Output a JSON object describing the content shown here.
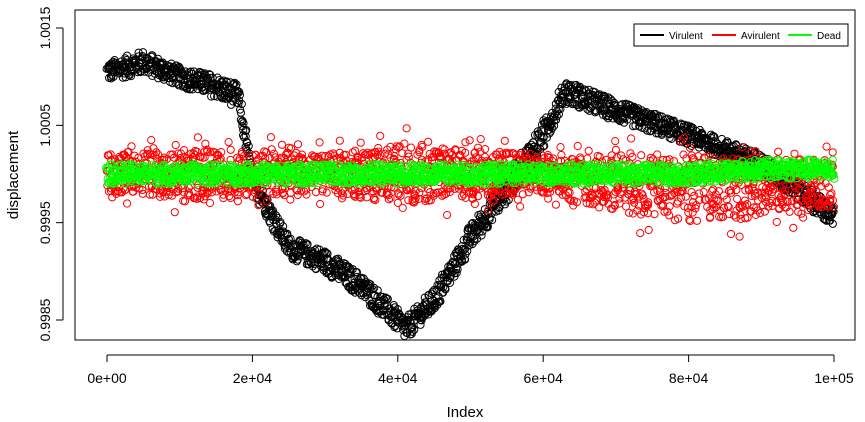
{
  "chart_data": {
    "type": "scatter",
    "xlabel": "Index",
    "ylabel": "displacement",
    "xlim": [
      0,
      100000
    ],
    "ylim": [
      0.99825,
      1.00153
    ],
    "x_ticks": [
      0,
      20000,
      40000,
      60000,
      80000,
      100000
    ],
    "x_tick_labels": [
      "0e+00",
      "2e+04",
      "4e+04",
      "6e+04",
      "8e+04",
      "1e+05"
    ],
    "y_ticks": [
      0.9985,
      0.9995,
      1.0005,
      1.0015
    ],
    "y_tick_labels": [
      "0.9985",
      "0.9995",
      "1.0005",
      "1.0015"
    ],
    "grid": false,
    "legend": {
      "position": "top-right",
      "entries": [
        {
          "label": "Virulent",
          "color": "#000000"
        },
        {
          "label": "Avirulent",
          "color": "#ff0000"
        },
        {
          "label": "Dead",
          "color": "#00ff00"
        }
      ]
    },
    "series": [
      {
        "name": "Virulent",
        "color": "#000000",
        "marker": "open-circle",
        "x": [
          0,
          5000,
          10000,
          15000,
          18000,
          20000,
          25000,
          30000,
          35000,
          40000,
          41000,
          45000,
          50000,
          55000,
          60000,
          63000,
          70000,
          80000,
          90000,
          95000,
          100000
        ],
        "y": [
          1.00105,
          1.00115,
          1.001,
          1.0009,
          1.0008,
          0.99995,
          0.99925,
          0.9991,
          0.99885,
          0.9985,
          0.9984,
          0.9987,
          0.99935,
          0.99985,
          1.0004,
          1.00085,
          1.00065,
          1.0004,
          1.0001,
          0.99985,
          0.99955
        ],
        "spread": [
          0.0001,
          0.00012,
          0.0001,
          0.00012,
          0.00012,
          0.00012,
          0.00011,
          0.00012,
          0.00012,
          0.00012,
          0.00012,
          0.00012,
          0.00013,
          0.00014,
          0.00014,
          0.00012,
          0.00011,
          0.0001,
          0.00011,
          0.00012,
          0.00011
        ]
      },
      {
        "name": "Avirulent",
        "color": "#ff0000",
        "marker": "open-circle",
        "x": [
          0,
          10000,
          20000,
          30000,
          40000,
          50000,
          60000,
          70000,
          80000,
          90000,
          100000
        ],
        "y": [
          1.0,
          1.0,
          1.0,
          1.0,
          1.0,
          1.0,
          1.0,
          0.9999,
          0.99985,
          0.99985,
          0.9999
        ],
        "spread": [
          0.0002,
          0.00025,
          0.00025,
          0.0002,
          0.0003,
          0.00025,
          0.0002,
          0.0003,
          0.00035,
          0.0003,
          0.00025
        ]
      },
      {
        "name": "Dead",
        "color": "#00ff00",
        "marker": "open-circle",
        "x": [
          0,
          10000,
          20000,
          30000,
          40000,
          50000,
          60000,
          70000,
          80000,
          90000,
          100000
        ],
        "y": [
          1.0,
          1.0,
          1.0,
          1.0,
          1.0,
          1.0,
          1.0,
          1.0,
          1.0,
          1.00005,
          1.00005
        ],
        "spread": [
          0.0001,
          0.0001,
          0.0001,
          0.0001,
          0.0001,
          0.0001,
          0.0001,
          0.0001,
          0.0001,
          0.0001,
          0.0001
        ]
      }
    ]
  }
}
